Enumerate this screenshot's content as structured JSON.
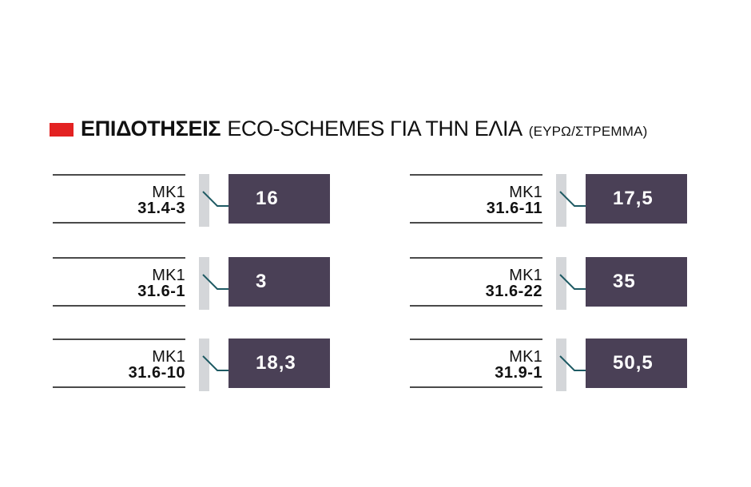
{
  "title": {
    "bold": "ΕΠΙΔΟΤΗΣΕΙΣ",
    "main": "ECO-SCHEMES ΓΙΑ ΤΗΝ ΕΛΙΑ",
    "unit": "(ΕΥΡΩ/ΣΤΡΕΜΜΑ)"
  },
  "colors": {
    "accent": "#e32222",
    "value_box": "#4a4056",
    "bar": "#d4d6d9",
    "connector": "#1e5a63"
  },
  "chart_data": {
    "type": "table",
    "title": "ΕΠΙΔΟΤΗΣΕΙΣ ECO-SCHEMES ΓΙΑ ΤΗΝ ΕΛΙΑ (ΕΥΡΩ/ΣΤΡΕΜΜΑ)",
    "rows": [
      {
        "prefix": "MK1",
        "code": "31.4-3",
        "value": "16"
      },
      {
        "prefix": "MK1",
        "code": "31.6-1",
        "value": "3"
      },
      {
        "prefix": "MK1",
        "code": "31.6-10",
        "value": "18,3"
      },
      {
        "prefix": "MK1",
        "code": "31.6-11",
        "value": "17,5"
      },
      {
        "prefix": "MK1",
        "code": "31.6-22",
        "value": "35"
      },
      {
        "prefix": "MK1",
        "code": "31.9-1",
        "value": "50,5"
      }
    ]
  }
}
